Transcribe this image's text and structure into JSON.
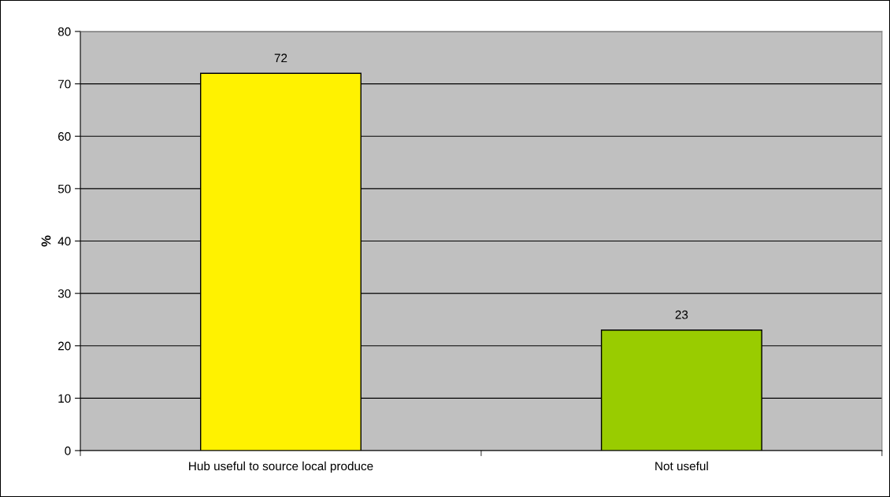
{
  "chart_data": {
    "type": "bar",
    "ylabel": "%",
    "categories": [
      "Hub useful to source local produce",
      "Not useful"
    ],
    "values": [
      72,
      23
    ],
    "colors": [
      "#fff200",
      "#99cc00"
    ],
    "ylim": [
      0,
      80
    ],
    "yticks": [
      0,
      10,
      20,
      30,
      40,
      50,
      60,
      70,
      80
    ],
    "grid": "y",
    "data_labels": true,
    "legend": false
  }
}
